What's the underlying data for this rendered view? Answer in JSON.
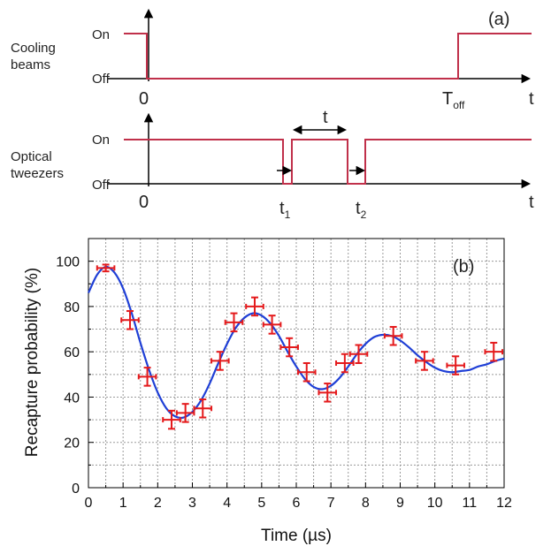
{
  "panel_a": {
    "label": "(a)",
    "cooling": {
      "title_line1": "Cooling",
      "title_line2": "beams",
      "on": "On",
      "off": "Off",
      "zero": "0",
      "t": "t",
      "toff_main": "T",
      "toff_sub": "off"
    },
    "tweezers": {
      "title_line1": "Optical",
      "title_line2": "tweezers",
      "on": "On",
      "off": "Off",
      "zero": "0",
      "t": "t",
      "tau": "t",
      "t1_main": "t",
      "t1_sub": "1",
      "t2_main": "t",
      "t2_sub": "2"
    },
    "colors": {
      "signal": "#c0304a",
      "axis": "#000000"
    }
  },
  "chart_data": {
    "type": "scatter",
    "label": "(b)",
    "xlabel": "Time (µs)",
    "ylabel": "Recapture probability (%)",
    "xlim": [
      0,
      12
    ],
    "ylim": [
      0,
      110
    ],
    "xticks": [
      0,
      1,
      2,
      3,
      4,
      5,
      6,
      7,
      8,
      9,
      10,
      11,
      12
    ],
    "yticks": [
      0,
      20,
      40,
      60,
      80,
      100
    ],
    "grid": true,
    "points": [
      {
        "x": 0.5,
        "y": 97,
        "yerr": 1.5,
        "xerr": 0.25
      },
      {
        "x": 1.2,
        "y": 74,
        "yerr": 4,
        "xerr": 0.25
      },
      {
        "x": 1.7,
        "y": 49,
        "yerr": 4,
        "xerr": 0.25
      },
      {
        "x": 2.4,
        "y": 30,
        "yerr": 4,
        "xerr": 0.25
      },
      {
        "x": 2.8,
        "y": 33,
        "yerr": 4,
        "xerr": 0.25
      },
      {
        "x": 3.3,
        "y": 35,
        "yerr": 4,
        "xerr": 0.25
      },
      {
        "x": 3.8,
        "y": 56,
        "yerr": 4,
        "xerr": 0.25
      },
      {
        "x": 4.2,
        "y": 73,
        "yerr": 4,
        "xerr": 0.25
      },
      {
        "x": 4.8,
        "y": 80,
        "yerr": 4,
        "xerr": 0.25
      },
      {
        "x": 5.3,
        "y": 72,
        "yerr": 4,
        "xerr": 0.25
      },
      {
        "x": 5.8,
        "y": 62,
        "yerr": 4,
        "xerr": 0.25
      },
      {
        "x": 6.3,
        "y": 51,
        "yerr": 4,
        "xerr": 0.25
      },
      {
        "x": 6.9,
        "y": 42,
        "yerr": 4,
        "xerr": 0.25
      },
      {
        "x": 7.4,
        "y": 55,
        "yerr": 4,
        "xerr": 0.25
      },
      {
        "x": 7.8,
        "y": 59,
        "yerr": 4,
        "xerr": 0.25
      },
      {
        "x": 8.8,
        "y": 67,
        "yerr": 4,
        "xerr": 0.25
      },
      {
        "x": 9.7,
        "y": 56,
        "yerr": 4,
        "xerr": 0.25
      },
      {
        "x": 10.6,
        "y": 54,
        "yerr": 4,
        "xerr": 0.25
      },
      {
        "x": 11.7,
        "y": 60,
        "yerr": 4,
        "xerr": 0.25
      }
    ],
    "fit": {
      "x": [
        0,
        0.25,
        0.5,
        0.75,
        1,
        1.25,
        1.5,
        1.75,
        2,
        2.25,
        2.5,
        2.75,
        3,
        3.25,
        3.5,
        3.75,
        4,
        4.25,
        4.5,
        4.75,
        5,
        5.25,
        5.5,
        5.75,
        6,
        6.25,
        6.5,
        6.75,
        7,
        7.25,
        7.5,
        7.75,
        8,
        8.25,
        8.5,
        8.75,
        9,
        9.25,
        9.5,
        9.75,
        10,
        10.25,
        10.5,
        10.75,
        11,
        11.25,
        11.5,
        11.75,
        12
      ],
      "y": [
        86,
        94,
        97.5,
        95,
        88,
        77,
        64,
        52,
        42,
        35,
        31.5,
        31,
        33.5,
        38.5,
        46,
        55,
        63.5,
        70.5,
        75,
        77,
        76,
        72.5,
        67,
        60,
        53.5,
        48,
        44.5,
        43.5,
        45,
        48.5,
        53.5,
        59,
        63.5,
        66.5,
        67.5,
        67,
        65,
        62,
        58.5,
        55.5,
        53,
        51.5,
        51,
        51.5,
        52,
        53.5,
        54.5,
        56,
        57
      ]
    },
    "colors": {
      "points": "#e41a1c",
      "fit": "#1f3fd6",
      "grid": "#9a9a9a",
      "axis": "#000000"
    }
  }
}
